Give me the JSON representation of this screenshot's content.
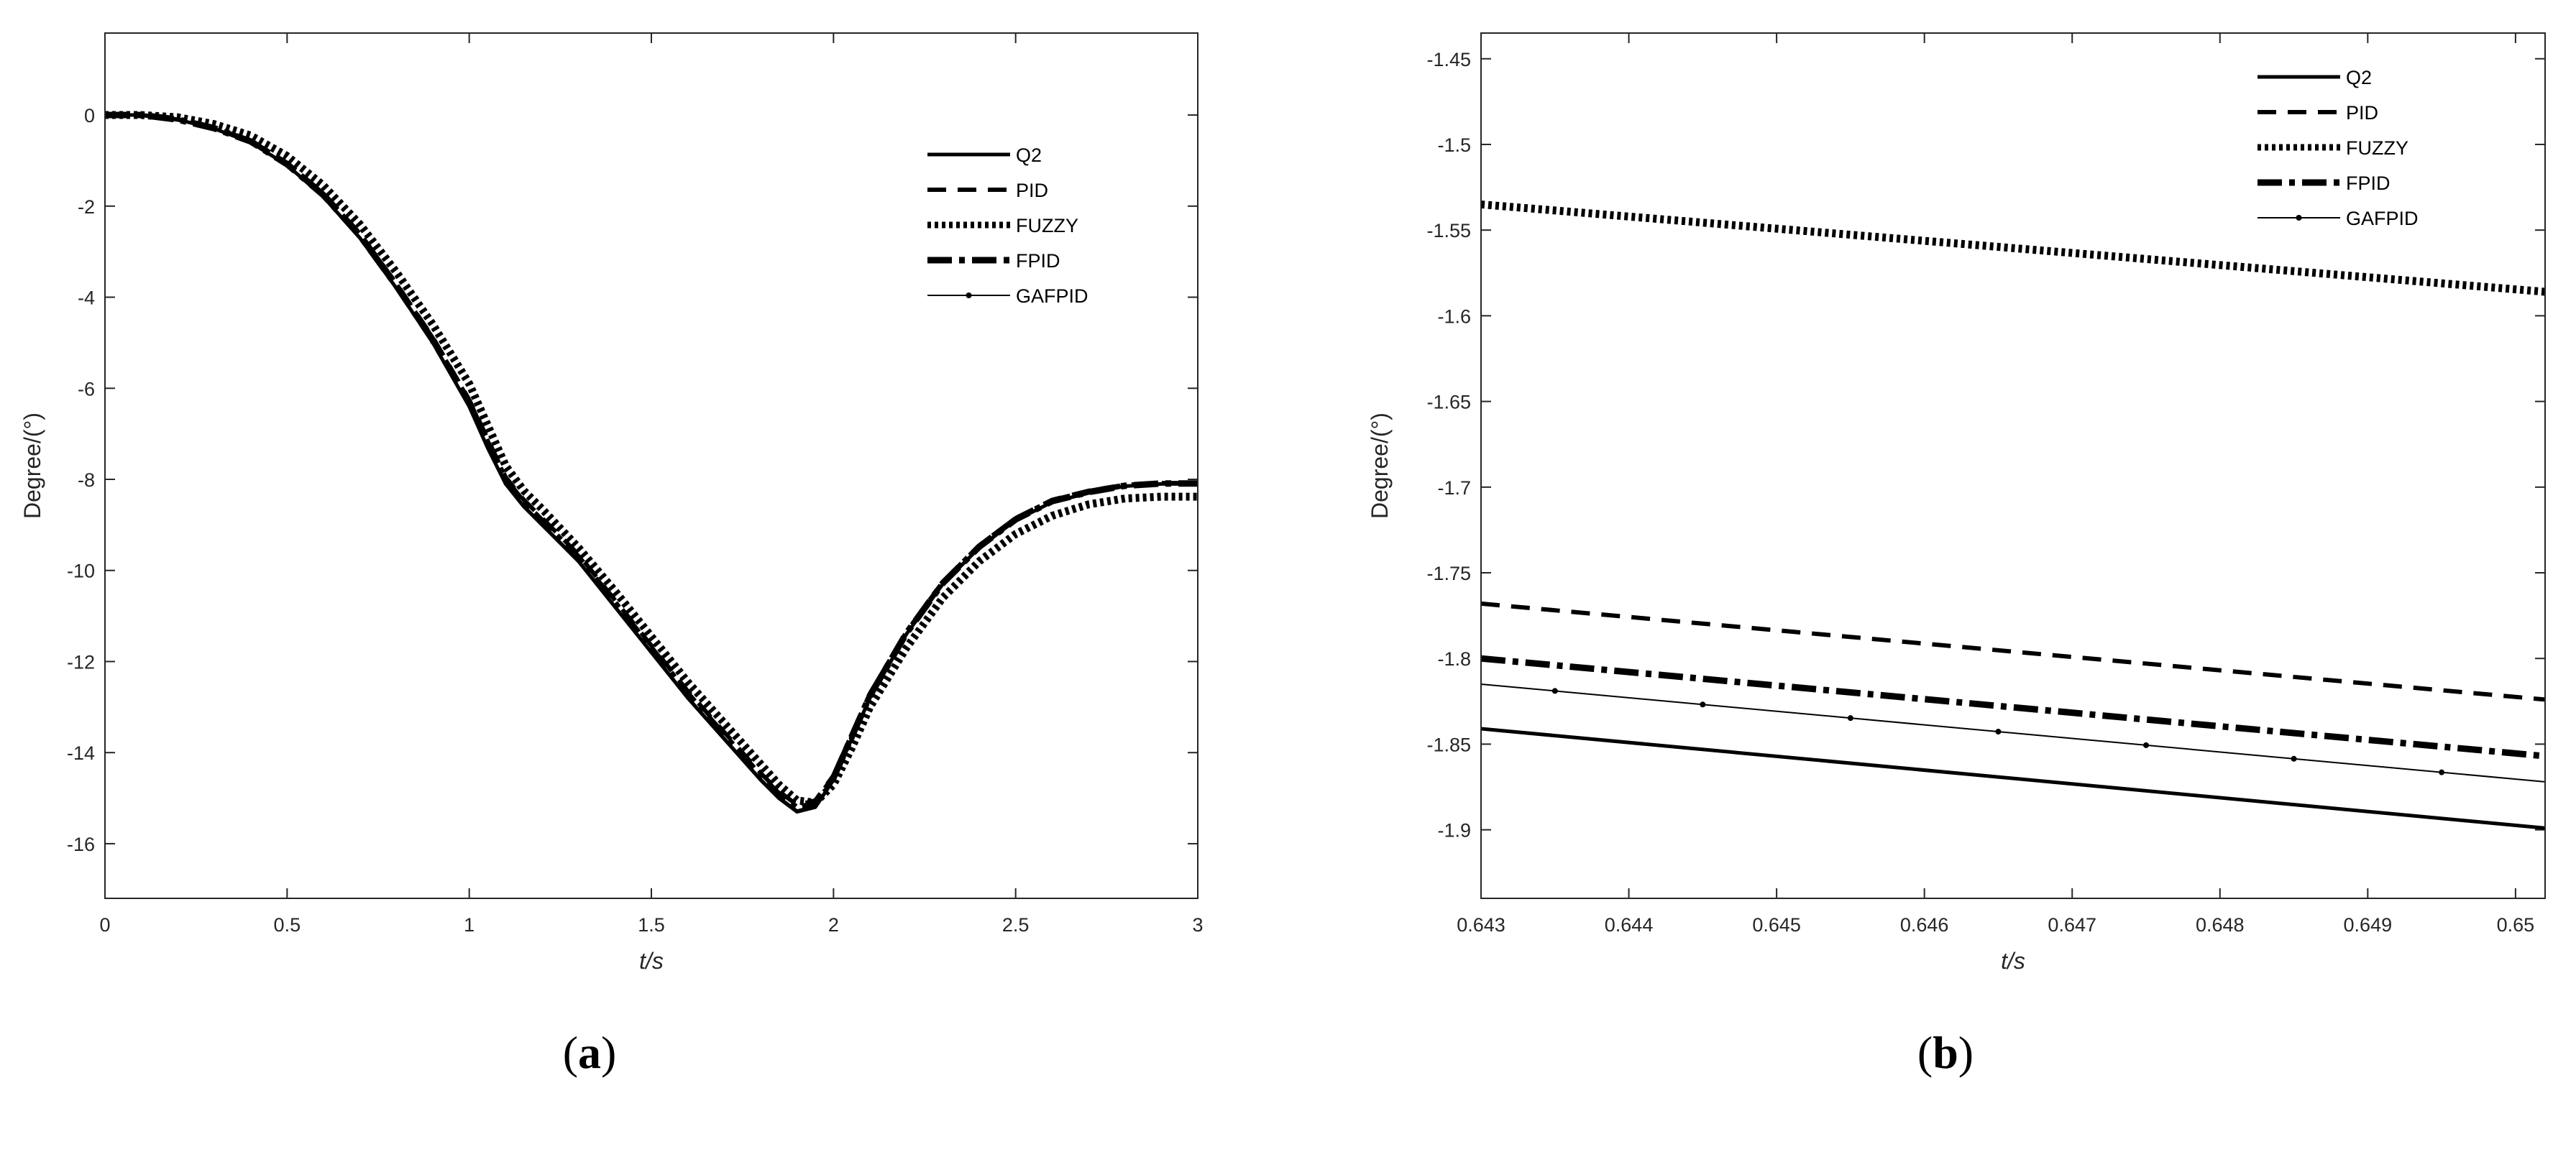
{
  "chart_data": [
    {
      "type": "line",
      "panel_label": "a",
      "xlabel": "t/s",
      "ylabel": "Degree/(°)",
      "xlim": [
        0,
        3
      ],
      "ylim": [
        -17.2,
        1.8
      ],
      "xticks": [
        0,
        0.5,
        1,
        1.5,
        2,
        2.5,
        3
      ],
      "yticks": [
        0,
        -2,
        -4,
        -6,
        -8,
        -10,
        -12,
        -14,
        -16
      ],
      "grid": false,
      "legend_position": "top-right",
      "series": [
        {
          "name": "Q2",
          "style": "solid-thick",
          "x": [
            0,
            0.1,
            0.2,
            0.3,
            0.4,
            0.5,
            0.6,
            0.7,
            0.8,
            0.9,
            1.0,
            1.05,
            1.1,
            1.15,
            1.2,
            1.3,
            1.4,
            1.5,
            1.6,
            1.7,
            1.8,
            1.85,
            1.9,
            1.95,
            2.0,
            2.05,
            2.1,
            2.2,
            2.3,
            2.4,
            2.5,
            2.6,
            2.7,
            2.8,
            2.9,
            3.0
          ],
          "y": [
            0,
            0,
            -0.1,
            -0.3,
            -0.6,
            -1.1,
            -1.8,
            -2.7,
            -3.8,
            -5.0,
            -6.4,
            -7.3,
            -8.1,
            -8.6,
            -9.0,
            -9.8,
            -10.8,
            -11.8,
            -12.8,
            -13.7,
            -14.6,
            -15.0,
            -15.3,
            -15.2,
            -14.6,
            -13.7,
            -12.8,
            -11.4,
            -10.3,
            -9.5,
            -8.9,
            -8.5,
            -8.3,
            -8.15,
            -8.1,
            -8.1
          ]
        },
        {
          "name": "PID",
          "style": "dashed-thick",
          "x": [
            0,
            0.1,
            0.2,
            0.3,
            0.4,
            0.5,
            0.6,
            0.7,
            0.8,
            0.9,
            1.0,
            1.05,
            1.1,
            1.15,
            1.2,
            1.3,
            1.4,
            1.5,
            1.6,
            1.7,
            1.8,
            1.85,
            1.9,
            1.95,
            2.0,
            2.05,
            2.1,
            2.2,
            2.3,
            2.4,
            2.5,
            2.6,
            2.7,
            2.8,
            2.9,
            3.0
          ],
          "y": [
            0,
            0,
            -0.1,
            -0.28,
            -0.56,
            -1.05,
            -1.72,
            -2.6,
            -3.7,
            -4.88,
            -6.25,
            -7.1,
            -7.95,
            -8.45,
            -8.85,
            -9.65,
            -10.65,
            -11.65,
            -12.65,
            -13.55,
            -14.45,
            -14.85,
            -15.15,
            -15.05,
            -14.5,
            -13.6,
            -12.7,
            -11.35,
            -10.25,
            -9.45,
            -8.85,
            -8.45,
            -8.25,
            -8.12,
            -8.08,
            -8.08
          ]
        },
        {
          "name": "FUZZY",
          "style": "dotted-thick",
          "x": [
            0,
            0.1,
            0.2,
            0.3,
            0.4,
            0.5,
            0.6,
            0.7,
            0.8,
            0.9,
            1.0,
            1.05,
            1.1,
            1.15,
            1.2,
            1.3,
            1.4,
            1.5,
            1.6,
            1.7,
            1.8,
            1.85,
            1.9,
            1.95,
            2.0,
            2.05,
            2.1,
            2.2,
            2.3,
            2.4,
            2.5,
            2.6,
            2.7,
            2.8,
            2.9,
            3.0
          ],
          "y": [
            0,
            0,
            -0.05,
            -0.2,
            -0.45,
            -0.9,
            -1.55,
            -2.4,
            -3.45,
            -4.6,
            -5.9,
            -6.8,
            -7.7,
            -8.25,
            -8.65,
            -9.5,
            -10.45,
            -11.45,
            -12.45,
            -13.35,
            -14.25,
            -14.7,
            -15.05,
            -15.1,
            -14.7,
            -13.9,
            -13.0,
            -11.7,
            -10.6,
            -9.8,
            -9.2,
            -8.8,
            -8.55,
            -8.42,
            -8.38,
            -8.38
          ]
        },
        {
          "name": "FPID",
          "style": "dashdot-thick",
          "x": [
            0,
            0.1,
            0.2,
            0.3,
            0.4,
            0.5,
            0.6,
            0.7,
            0.8,
            0.9,
            1.0,
            1.05,
            1.1,
            1.15,
            1.2,
            1.3,
            1.4,
            1.5,
            1.6,
            1.7,
            1.8,
            1.85,
            1.9,
            1.95,
            2.0,
            2.05,
            2.1,
            2.2,
            2.3,
            2.4,
            2.5,
            2.6,
            2.7,
            2.8,
            2.9,
            3.0
          ],
          "y": [
            0,
            0,
            -0.1,
            -0.29,
            -0.58,
            -1.08,
            -1.76,
            -2.65,
            -3.75,
            -4.94,
            -6.32,
            -7.2,
            -8.02,
            -8.52,
            -8.92,
            -9.72,
            -10.72,
            -11.72,
            -12.72,
            -13.62,
            -14.52,
            -14.92,
            -15.22,
            -15.12,
            -14.55,
            -13.65,
            -12.75,
            -11.38,
            -10.28,
            -9.48,
            -8.88,
            -8.48,
            -8.28,
            -8.14,
            -8.09,
            -8.09
          ]
        },
        {
          "name": "GAFPID",
          "style": "thin-with-markers",
          "x": [
            0,
            0.1,
            0.2,
            0.3,
            0.4,
            0.5,
            0.6,
            0.7,
            0.8,
            0.9,
            1.0,
            1.05,
            1.1,
            1.15,
            1.2,
            1.3,
            1.4,
            1.5,
            1.6,
            1.7,
            1.8,
            1.85,
            1.9,
            1.95,
            2.0,
            2.05,
            2.1,
            2.2,
            2.3,
            2.4,
            2.5,
            2.6,
            2.7,
            2.8,
            2.9,
            3.0
          ],
          "y": [
            0,
            0,
            -0.1,
            -0.3,
            -0.59,
            -1.09,
            -1.78,
            -2.68,
            -3.78,
            -4.97,
            -6.36,
            -7.25,
            -8.06,
            -8.56,
            -8.96,
            -9.76,
            -10.76,
            -11.76,
            -12.76,
            -13.66,
            -14.56,
            -14.96,
            -15.26,
            -15.16,
            -14.58,
            -13.68,
            -12.78,
            -11.39,
            -10.29,
            -9.49,
            -8.89,
            -8.49,
            -8.29,
            -8.15,
            -8.1,
            -8.1
          ]
        }
      ]
    },
    {
      "type": "line",
      "panel_label": "b",
      "xlabel": "t/s",
      "ylabel": "Degree/(°)",
      "xlim": [
        0.643,
        0.6502
      ],
      "ylim": [
        -1.94,
        -1.435
      ],
      "xticks": [
        0.643,
        0.644,
        0.645,
        0.646,
        0.647,
        0.648,
        0.649,
        0.65
      ],
      "yticks": [
        -1.45,
        -1.5,
        -1.55,
        -1.6,
        -1.65,
        -1.7,
        -1.75,
        -1.8,
        -1.85,
        -1.9
      ],
      "grid": false,
      "legend_position": "top-right",
      "series": [
        {
          "name": "Q2",
          "style": "solid-thick",
          "x": [
            0.643,
            0.6502
          ],
          "y": [
            -1.841,
            -1.899
          ]
        },
        {
          "name": "PID",
          "style": "dashed-thick",
          "x": [
            0.643,
            0.6502
          ],
          "y": [
            -1.768,
            -1.824
          ]
        },
        {
          "name": "FUZZY",
          "style": "dotted-thick",
          "x": [
            0.643,
            0.6502
          ],
          "y": [
            -1.535,
            -1.586
          ]
        },
        {
          "name": "FPID",
          "style": "dashdot-thick",
          "x": [
            0.643,
            0.6502
          ],
          "y": [
            -1.8,
            -1.857
          ]
        },
        {
          "name": "GAFPID",
          "style": "thin-with-markers",
          "x": [
            0.643,
            0.6502
          ],
          "y": [
            -1.815,
            -1.872
          ],
          "markers_x": [
            0.6435,
            0.6445,
            0.6455,
            0.6465,
            0.6475,
            0.6485,
            0.6495
          ]
        }
      ]
    }
  ]
}
